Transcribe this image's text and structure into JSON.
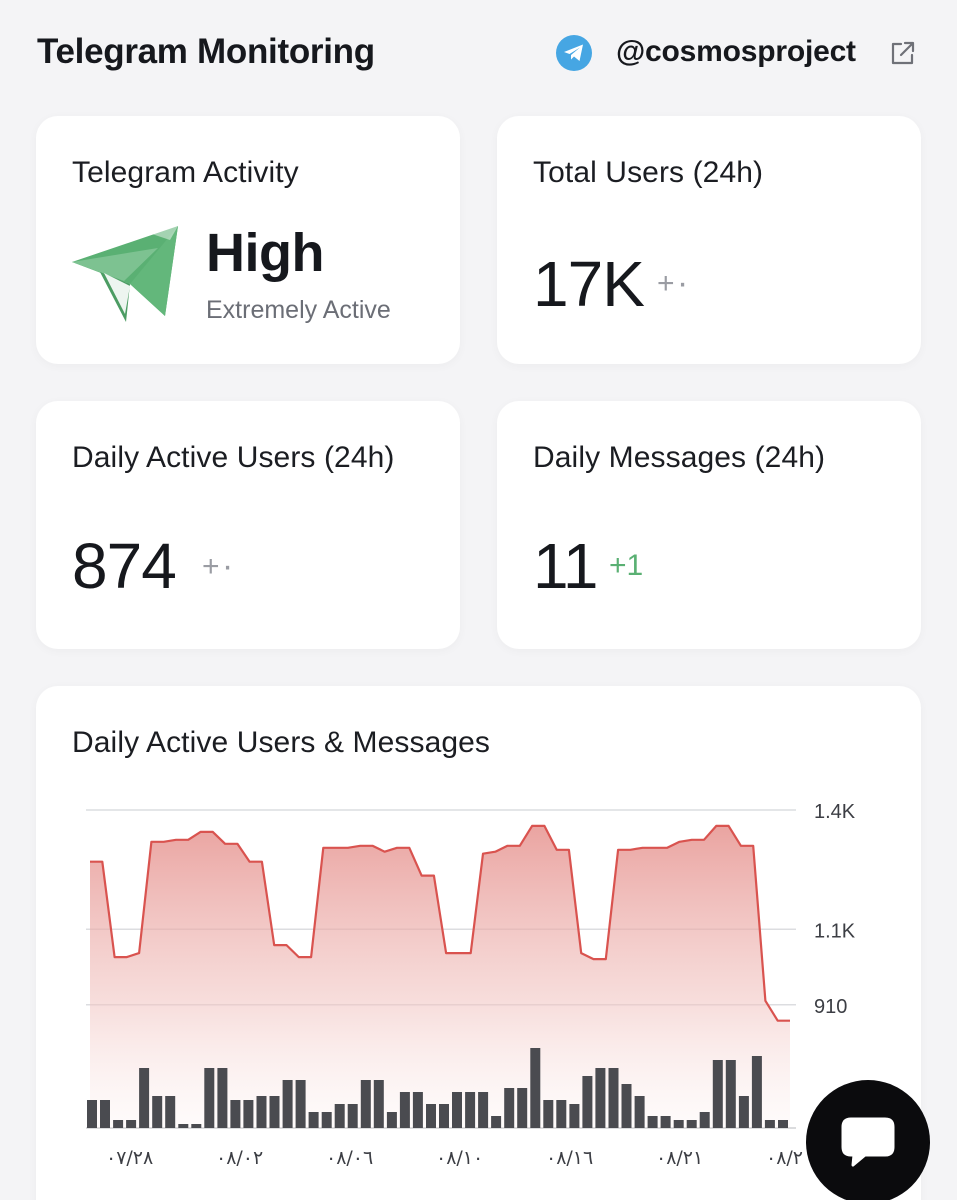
{
  "header": {
    "title": "Telegram Monitoring",
    "channel": "@cosmosproject"
  },
  "cards": {
    "activity": {
      "title": "Telegram Activity",
      "level": "High",
      "description": "Extremely Active"
    },
    "total_users": {
      "title": "Total Users (24h)",
      "value": "17K",
      "delta": "+٠"
    },
    "daily_active_users": {
      "title": "Daily Active Users (24h)",
      "value": "874",
      "delta": "+٠"
    },
    "daily_messages": {
      "title": "Daily Messages (24h)",
      "value": "11",
      "delta": "+1"
    }
  },
  "colors": {
    "accent_green": "#5ab073",
    "line_red": "#d9534f",
    "bar_dark": "#4a4b50",
    "telegram_blue": "#46a6e3"
  },
  "icons": {
    "telegram": "telegram-icon",
    "external_link": "external-link-icon",
    "paper_plane": "paper-plane-icon",
    "chat": "chat-bubble-icon"
  },
  "chart": {
    "title": "Daily Active Users & Messages"
  },
  "chart_data": {
    "type": "line",
    "title": "Daily Active Users & Messages",
    "xlabel": "",
    "ylabel": "",
    "x_tick_labels": [
      "٠٧/٢٨",
      "٠٨/٠٢",
      "٠٨/٠٦",
      "٠٨/١٠",
      "٠٨/١٦",
      "٠٨/٢١",
      "٠٨/٢"
    ],
    "y_tick_labels": [
      "1.4K",
      "1.1K",
      "910"
    ],
    "ylim": [
      600,
      1400
    ],
    "grid": true,
    "series": [
      {
        "kind": "area",
        "values": [
          1270,
          1270,
          1030,
          1030,
          1040,
          1320,
          1320,
          1325,
          1325,
          1345,
          1345,
          1315,
          1315,
          1270,
          1270,
          1060,
          1060,
          1030,
          1030,
          1305,
          1305,
          1305,
          1310,
          1310,
          1295,
          1305,
          1305,
          1235,
          1235,
          1040,
          1040,
          1040,
          1290,
          1295,
          1310,
          1310,
          1360,
          1360,
          1300,
          1300,
          1040,
          1025,
          1025,
          1300,
          1300,
          1305,
          1305,
          1305,
          1320,
          1325,
          1325,
          1360,
          1360,
          1310,
          1310,
          920,
          870,
          870
        ]
      },
      {
        "kind": "bar",
        "values": [
          7,
          7,
          2,
          2,
          15,
          8,
          8,
          1,
          1,
          15,
          15,
          7,
          7,
          8,
          8,
          12,
          12,
          4,
          4,
          6,
          6,
          12,
          12,
          4,
          9,
          9,
          6,
          6,
          9,
          9,
          9,
          3,
          10,
          10,
          20,
          7,
          7,
          6,
          13,
          15,
          15,
          11,
          8,
          3,
          3,
          2,
          2,
          4,
          17,
          17,
          8,
          18,
          2,
          2
        ]
      }
    ]
  }
}
